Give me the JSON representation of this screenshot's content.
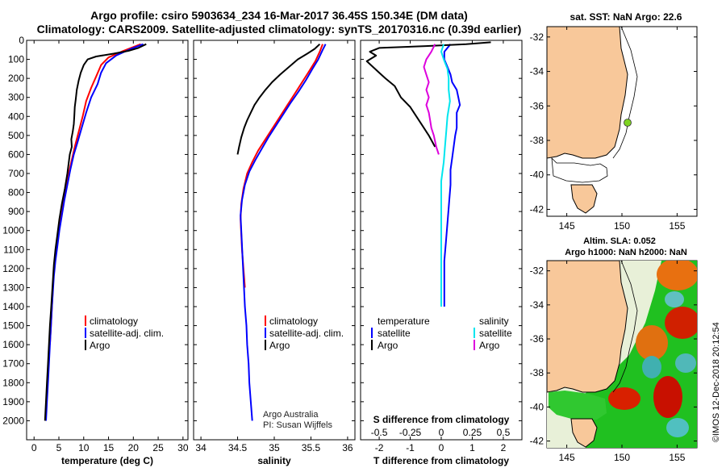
{
  "title_line1": "Argo profile: csiro 5903634_234 16-Mar-2017 36.45S 150.34E (DM data)",
  "title_line2": "Climatology: CARS2009. Satellite-adjusted climatology: synTS_20170316.nc (0.39d earlier)",
  "sst_title": "sat. SST: NaN Argo: 22.6",
  "sla_title1": "Altim. SLA: 0.052",
  "sla_title2": "Argo h1000: NaN h2000: NaN",
  "credit_side": "©IMOS 12-Dec-2018 20:12:54",
  "credit_argo": "Argo Australia",
  "credit_pi": "PI: Susan Wijffels",
  "depth_ticks": [
    "0",
    "100",
    "200",
    "300",
    "400",
    "500",
    "600",
    "700",
    "800",
    "900",
    "1000",
    "1100",
    "1200",
    "1300",
    "1400",
    "1500",
    "1600",
    "1700",
    "1800",
    "1900",
    "2000"
  ],
  "colors": {
    "climatology": "#ff0000",
    "satellite": "#0000ff",
    "argo": "#000000",
    "sat_salinity": "#00e5ee",
    "argo_salinity": "#dd00dd",
    "land": "#f8c89a"
  },
  "chart_data": [
    {
      "type": "line",
      "name": "temperature-panel",
      "xlabel": "temperature (deg C)",
      "xlim": [
        -1.5,
        31
      ],
      "ylim": [
        0,
        2100
      ],
      "y_reversed": true,
      "xticks": [
        "0",
        "5",
        "10",
        "15",
        "20",
        "25",
        "30"
      ],
      "legend": [
        "climatology",
        "satellite-adj. clim.",
        "Argo"
      ],
      "series": [
        {
          "name": "climatology",
          "color": "#ff0000",
          "values": [
            [
              21.5,
              20
            ],
            [
              18,
              55
            ],
            [
              15,
              90
            ],
            [
              13.5,
              130
            ],
            [
              12.5,
              190
            ],
            [
              11.5,
              250
            ],
            [
              10.5,
              320
            ],
            [
              9.8,
              400
            ],
            [
              9,
              480
            ],
            [
              8.2,
              560
            ],
            [
              7.5,
              640
            ],
            [
              6.8,
              720
            ],
            [
              6.2,
              800
            ],
            [
              5.6,
              880
            ],
            [
              5.1,
              960
            ],
            [
              4.7,
              1040
            ],
            [
              4.3,
              1120
            ],
            [
              4.0,
              1200
            ],
            [
              3.8,
              1300
            ],
            [
              3.6,
              1400
            ],
            [
              3.4,
              1500
            ],
            [
              3.2,
              1600
            ]
          ]
        },
        {
          "name": "satellite-adj. clim.",
          "color": "#0000ff",
          "values": [
            [
              22,
              20
            ],
            [
              19.5,
              45
            ],
            [
              16.5,
              80
            ],
            [
              14.5,
              120
            ],
            [
              13.5,
              170
            ],
            [
              12.8,
              230
            ],
            [
              11.5,
              300
            ],
            [
              10.5,
              380
            ],
            [
              9.6,
              460
            ],
            [
              8.7,
              540
            ],
            [
              8.0,
              600
            ],
            [
              7.3,
              680
            ],
            [
              6.7,
              760
            ],
            [
              6.1,
              840
            ],
            [
              5.6,
              920
            ],
            [
              5.1,
              1000
            ],
            [
              4.7,
              1080
            ],
            [
              4.3,
              1160
            ],
            [
              4.0,
              1240
            ],
            [
              3.8,
              1320
            ],
            [
              3.6,
              1400
            ],
            [
              3.4,
              1500
            ],
            [
              3.2,
              1600
            ],
            [
              3.0,
              1700
            ],
            [
              2.8,
              1800
            ],
            [
              2.6,
              1900
            ],
            [
              2.4,
              2000
            ]
          ]
        },
        {
          "name": "Argo",
          "color": "#000000",
          "values": [
            [
              22.6,
              20
            ],
            [
              21,
              40
            ],
            [
              19,
              55
            ],
            [
              16,
              70
            ],
            [
              12.5,
              85
            ],
            [
              10.8,
              100
            ],
            [
              10,
              130
            ],
            [
              9.4,
              170
            ],
            [
              9,
              210
            ],
            [
              8.6,
              260
            ],
            [
              8.4,
              310
            ],
            [
              8.2,
              350
            ],
            [
              8.1,
              400
            ],
            [
              8.0,
              440
            ],
            [
              7.8,
              480
            ],
            [
              7.5,
              520
            ],
            [
              7.6,
              560
            ],
            [
              7.2,
              600
            ],
            [
              7.0,
              640
            ],
            [
              6.7,
              700
            ],
            [
              6.2,
              780
            ],
            [
              5.6,
              860
            ],
            [
              5.1,
              940
            ],
            [
              4.7,
              1020
            ],
            [
              4.3,
              1100
            ],
            [
              4.0,
              1180
            ],
            [
              3.8,
              1260
            ],
            [
              3.6,
              1340
            ],
            [
              3.4,
              1420
            ],
            [
              3.2,
              1500
            ],
            [
              3.0,
              1600
            ],
            [
              2.8,
              1700
            ],
            [
              2.6,
              1800
            ],
            [
              2.4,
              1900
            ],
            [
              2.2,
              2000
            ]
          ]
        }
      ]
    },
    {
      "type": "line",
      "name": "salinity-panel",
      "xlabel": "salinity",
      "xlim": [
        33.9,
        36.1
      ],
      "ylim": [
        0,
        2100
      ],
      "y_reversed": true,
      "xticks": [
        "34",
        "34.5",
        "35",
        "35.5",
        "36"
      ],
      "legend": [
        "climatology",
        "satellite-adj. clim.",
        "Argo"
      ],
      "series": [
        {
          "name": "climatology",
          "color": "#ff0000",
          "values": [
            [
              35.66,
              20
            ],
            [
              35.62,
              60
            ],
            [
              35.56,
              110
            ],
            [
              35.48,
              160
            ],
            [
              35.38,
              220
            ],
            [
              35.28,
              280
            ],
            [
              35.18,
              340
            ],
            [
              35.08,
              400
            ],
            [
              34.98,
              460
            ],
            [
              34.88,
              520
            ],
            [
              34.78,
              580
            ],
            [
              34.7,
              640
            ],
            [
              34.63,
              700
            ],
            [
              34.58,
              780
            ],
            [
              34.55,
              860
            ],
            [
              34.54,
              940
            ],
            [
              34.55,
              1020
            ],
            [
              34.56,
              1100
            ],
            [
              34.58,
              1200
            ],
            [
              34.6,
              1300
            ]
          ]
        },
        {
          "name": "satellite-adj. clim.",
          "color": "#0000ff",
          "values": [
            [
              35.7,
              20
            ],
            [
              35.66,
              50
            ],
            [
              35.6,
              100
            ],
            [
              35.52,
              150
            ],
            [
              35.43,
              210
            ],
            [
              35.33,
              270
            ],
            [
              35.22,
              330
            ],
            [
              35.12,
              390
            ],
            [
              35.02,
              450
            ],
            [
              34.92,
              510
            ],
            [
              34.83,
              570
            ],
            [
              34.74,
              630
            ],
            [
              34.66,
              690
            ],
            [
              34.6,
              760
            ],
            [
              34.56,
              840
            ],
            [
              34.54,
              920
            ],
            [
              34.55,
              1000
            ],
            [
              34.56,
              1080
            ],
            [
              34.57,
              1160
            ],
            [
              34.58,
              1240
            ],
            [
              34.59,
              1320
            ],
            [
              34.6,
              1400
            ],
            [
              34.62,
              1500
            ],
            [
              34.63,
              1600
            ],
            [
              34.65,
              1700
            ],
            [
              34.66,
              1800
            ],
            [
              34.68,
              1900
            ],
            [
              34.7,
              2000
            ]
          ]
        },
        {
          "name": "Argo",
          "color": "#000000",
          "values": [
            [
              35.62,
              20
            ],
            [
              35.55,
              45
            ],
            [
              35.45,
              70
            ],
            [
              35.32,
              100
            ],
            [
              35.2,
              140
            ],
            [
              35.08,
              180
            ],
            [
              34.97,
              220
            ],
            [
              34.88,
              260
            ],
            [
              34.8,
              300
            ],
            [
              34.73,
              340
            ],
            [
              34.68,
              380
            ],
            [
              34.63,
              420
            ],
            [
              34.59,
              460
            ],
            [
              34.55,
              510
            ],
            [
              34.52,
              560
            ],
            [
              34.5,
              600
            ]
          ]
        }
      ]
    },
    {
      "type": "line",
      "name": "difference-panel",
      "xlabel": "T difference from climatology",
      "x2label": "S difference from climatology",
      "xlim": [
        -2.6,
        2.6
      ],
      "ylim": [
        0,
        2100
      ],
      "y_reversed": true,
      "xticks": [
        "-2",
        "-1",
        "0",
        "1",
        "2"
      ],
      "s_xticks": [
        "-0.5",
        "-0.25",
        "0",
        "0.25",
        "0.5"
      ],
      "legend_left_title": "temperature",
      "legend_right_title": "salinity",
      "legend": [
        "satellite",
        "Argo",
        "satellite",
        "Argo"
      ],
      "series": [
        {
          "name": "temperature satellite",
          "color": "#0000ff",
          "values": [
            [
              0.3,
              20
            ],
            [
              0.1,
              60
            ],
            [
              0.1,
              100
            ],
            [
              0.2,
              140
            ],
            [
              0.3,
              180
            ],
            [
              0.35,
              220
            ],
            [
              0.5,
              260
            ],
            [
              0.55,
              300
            ],
            [
              0.6,
              340
            ],
            [
              0.5,
              380
            ],
            [
              0.5,
              420
            ],
            [
              0.5,
              460
            ],
            [
              0.45,
              500
            ],
            [
              0.4,
              560
            ],
            [
              0.35,
              620
            ],
            [
              0.3,
              680
            ],
            [
              0.3,
              760
            ],
            [
              0.25,
              860
            ],
            [
              0.2,
              960
            ],
            [
              0.15,
              1060
            ],
            [
              0.1,
              1160
            ],
            [
              0.1,
              1260
            ],
            [
              0.1,
              1400
            ]
          ]
        },
        {
          "name": "temperature Argo",
          "color": "#000000",
          "values": [
            [
              1.6,
              10
            ],
            [
              0.8,
              20
            ],
            [
              -0.5,
              30
            ],
            [
              -2.0,
              40
            ],
            [
              -2.3,
              60
            ],
            [
              -2.1,
              80
            ],
            [
              -2.4,
              110
            ],
            [
              -2.2,
              140
            ],
            [
              -2.0,
              170
            ],
            [
              -1.8,
              200
            ],
            [
              -1.5,
              240
            ],
            [
              -1.3,
              300
            ],
            [
              -1.0,
              350
            ],
            [
              -0.8,
              400
            ],
            [
              -0.6,
              450
            ],
            [
              -0.4,
              500
            ],
            [
              -0.2,
              560
            ]
          ]
        },
        {
          "name": "salinity satellite",
          "color": "#00e5ee",
          "values": [
            [
              0.02,
              20
            ],
            [
              0.0,
              60
            ],
            [
              0.02,
              100
            ],
            [
              0.05,
              150
            ],
            [
              0.06,
              200
            ],
            [
              0.06,
              260
            ],
            [
              0.07,
              320
            ],
            [
              0.05,
              400
            ],
            [
              0.04,
              480
            ],
            [
              0.03,
              560
            ],
            [
              0.02,
              640
            ],
            [
              0.0,
              740
            ],
            [
              0.0,
              860
            ],
            [
              0.0,
              980
            ],
            [
              0.0,
              1100
            ],
            [
              0.0,
              1220
            ],
            [
              0.0,
              1340
            ],
            [
              0.0,
              1400
            ]
          ]
        },
        {
          "name": "salinity Argo",
          "color": "#dd00dd",
          "values": [
            [
              -0.05,
              20
            ],
            [
              -0.08,
              60
            ],
            [
              -0.12,
              100
            ],
            [
              -0.14,
              140
            ],
            [
              -0.12,
              180
            ],
            [
              -0.1,
              220
            ],
            [
              -0.12,
              260
            ],
            [
              -0.1,
              300
            ],
            [
              -0.12,
              340
            ],
            [
              -0.1,
              380
            ],
            [
              -0.09,
              420
            ],
            [
              -0.08,
              460
            ],
            [
              -0.06,
              500
            ],
            [
              -0.04,
              560
            ],
            [
              -0.02,
              600
            ]
          ]
        }
      ]
    }
  ],
  "map_sst": {
    "lon_ticks": [
      "145",
      "150",
      "155"
    ],
    "lat_ticks": [
      "-32",
      "-34",
      "-36",
      "-38",
      "-40",
      "-42"
    ],
    "marker": "Argo float position"
  },
  "map_sla": {
    "lon_ticks": [
      "145",
      "150",
      "155"
    ],
    "lat_ticks": [
      "-32",
      "-34",
      "-36",
      "-38",
      "-40",
      "-42"
    ]
  }
}
